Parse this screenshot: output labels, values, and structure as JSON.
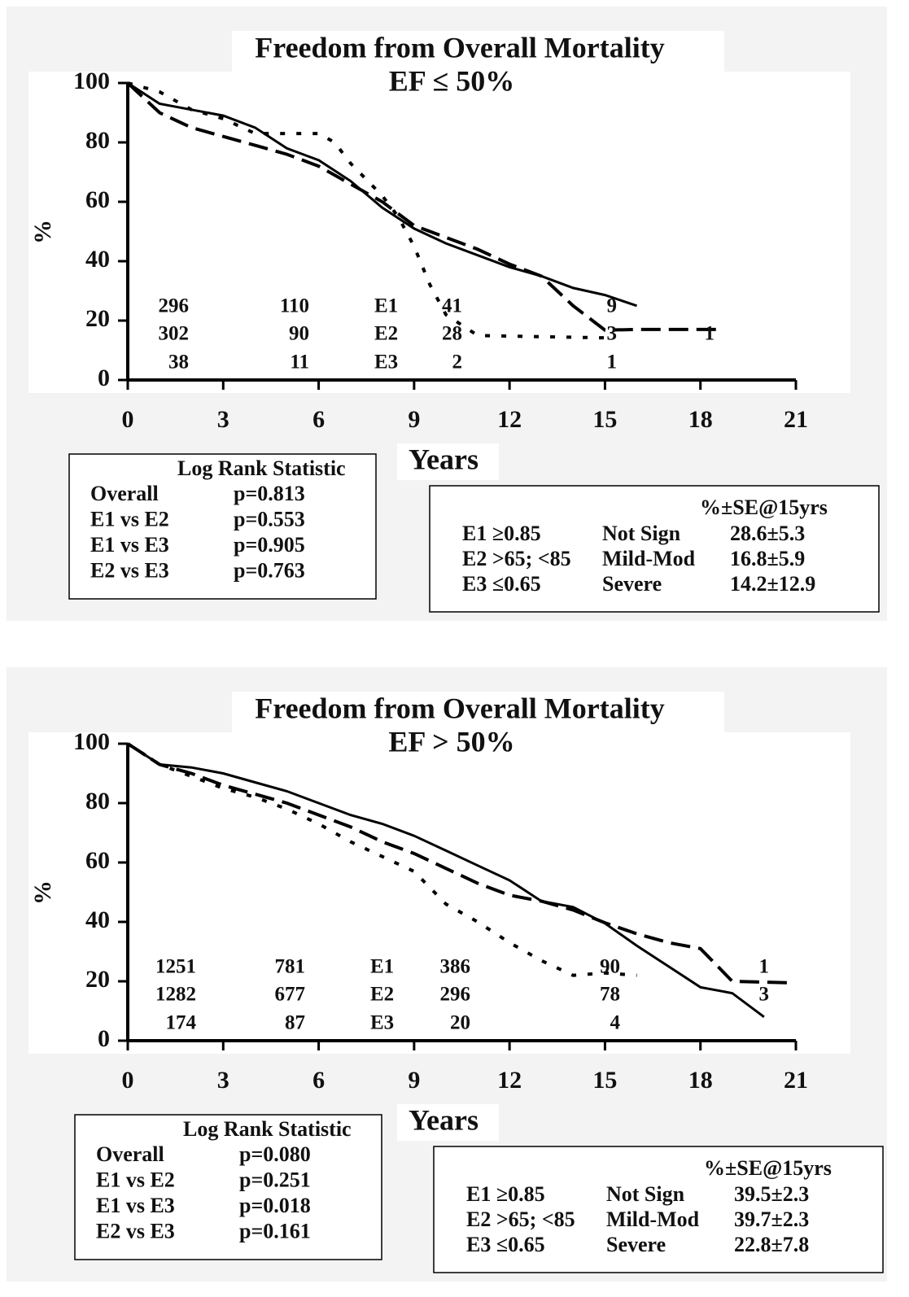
{
  "chart_data": [
    {
      "type": "line",
      "title": "Freedom from Overall Mortality",
      "subtitle": "EF ≤ 50%",
      "xlabel": "Years",
      "ylabel": "%",
      "xlim": [
        0,
        21
      ],
      "xticks": [
        0,
        3,
        6,
        9,
        12,
        15,
        18,
        21
      ],
      "ylim": [
        0,
        100
      ],
      "yticks": [
        0,
        20,
        40,
        60,
        80,
        100
      ],
      "series": [
        {
          "name": "E1",
          "color": "#000000",
          "dash": "solid",
          "x": [
            0,
            1,
            2,
            3,
            4,
            5,
            6,
            7,
            8,
            9,
            10,
            11,
            12,
            13,
            14,
            15,
            16
          ],
          "values": [
            100,
            93,
            91,
            89,
            85,
            78,
            74,
            67,
            58,
            51,
            46,
            42,
            38,
            35,
            31,
            28.6,
            25
          ]
        },
        {
          "name": "E2",
          "color": "#000000",
          "dash": "dashed",
          "x": [
            0,
            1,
            2,
            3,
            4,
            5,
            6,
            7,
            8,
            9,
            10,
            11,
            12,
            13,
            14,
            15,
            16,
            18.5
          ],
          "values": [
            100,
            90,
            85,
            82,
            79,
            76,
            72,
            66,
            60,
            52,
            48,
            44,
            39,
            35,
            25,
            16.8,
            17,
            17
          ]
        },
        {
          "name": "E3",
          "color": "#000000",
          "dash": "dotted",
          "x": [
            0,
            1,
            2,
            3,
            4,
            5,
            6,
            6.5,
            7,
            8,
            8.5,
            9,
            9.5,
            10,
            11,
            15
          ],
          "values": [
            100,
            97,
            91,
            88,
            83,
            83,
            83,
            80,
            73,
            62,
            55,
            45,
            32,
            22,
            15,
            14.2
          ]
        }
      ],
      "at_risk": [
        [
          296,
          110,
          41,
          9,
          null
        ],
        [
          302,
          90,
          28,
          3,
          1
        ],
        [
          38,
          11,
          2,
          1,
          null
        ]
      ],
      "log_rank": {
        "title": "Log Rank Statistic",
        "rows": [
          [
            "Overall",
            "p=0.813"
          ],
          [
            "E1 vs E2",
            "p=0.553"
          ],
          [
            "E1 vs E3",
            "p=0.905"
          ],
          [
            "E2 vs E3",
            "p=0.763"
          ]
        ]
      },
      "se_table": {
        "header": "%±SE@15yrs",
        "rows": [
          [
            "E1 ≥0.85",
            "Not Sign",
            "28.6±5.3"
          ],
          [
            "E2 >65; <85",
            "Mild-Mod",
            "16.8±5.9"
          ],
          [
            "E3 ≤0.65",
            "Severe",
            "14.2±12.9"
          ]
        ]
      }
    },
    {
      "type": "line",
      "title": "Freedom from Overall Mortality",
      "subtitle": "EF > 50%",
      "xlabel": "Years",
      "ylabel": "%",
      "xlim": [
        0,
        21
      ],
      "xticks": [
        0,
        3,
        6,
        9,
        12,
        15,
        18,
        21
      ],
      "ylim": [
        0,
        100
      ],
      "yticks": [
        0,
        20,
        40,
        60,
        80,
        100
      ],
      "series": [
        {
          "name": "E1",
          "color": "#000000",
          "dash": "solid",
          "x": [
            0,
            1,
            2,
            3,
            4,
            5,
            6,
            7,
            8,
            9,
            10,
            11,
            12,
            13,
            14,
            15,
            16,
            17,
            18,
            19,
            20
          ],
          "values": [
            100,
            93,
            92,
            90,
            87,
            84,
            80,
            76,
            73,
            69,
            64,
            59,
            54,
            47,
            45,
            39.5,
            32,
            25,
            18,
            16,
            8
          ]
        },
        {
          "name": "E2",
          "color": "#000000",
          "dash": "dashed",
          "x": [
            0,
            1,
            2,
            3,
            4,
            5,
            6,
            7,
            8,
            9,
            10,
            11,
            12,
            13,
            14,
            15,
            16,
            17,
            18,
            19,
            20.8
          ],
          "values": [
            100,
            93,
            90,
            86,
            83,
            80,
            76,
            72,
            67,
            63,
            58,
            53,
            49,
            47,
            44,
            39.7,
            36,
            33,
            31,
            20,
            19.5
          ]
        },
        {
          "name": "E3",
          "color": "#000000",
          "dash": "dotted",
          "x": [
            0,
            1,
            2,
            3,
            4,
            5,
            6,
            7,
            8,
            9,
            10,
            11,
            12,
            13,
            14,
            15,
            16
          ],
          "values": [
            100,
            93,
            89,
            85,
            82,
            78,
            73,
            67,
            62,
            57,
            46,
            40,
            33,
            27,
            22,
            22.8,
            22
          ]
        }
      ],
      "at_risk": [
        [
          1251,
          781,
          386,
          90,
          1
        ],
        [
          1282,
          677,
          296,
          78,
          3
        ],
        [
          174,
          87,
          20,
          4,
          null
        ]
      ],
      "log_rank": {
        "title": "Log Rank Statistic",
        "rows": [
          [
            "Overall",
            "p=0.080"
          ],
          [
            "E1 vs E2",
            "p=0.251"
          ],
          [
            "E1 vs E3",
            "p=0.018"
          ],
          [
            "E2 vs E3",
            "p=0.161"
          ]
        ]
      },
      "se_table": {
        "header": "%±SE@15yrs",
        "rows": [
          [
            "E1 ≥0.85",
            "Not Sign",
            "39.5±2.3"
          ],
          [
            "E2 >65; <85",
            "Mild-Mod",
            "39.7±2.3"
          ],
          [
            "E3 ≤0.65",
            "Severe",
            "22.8±7.8"
          ]
        ]
      }
    }
  ]
}
